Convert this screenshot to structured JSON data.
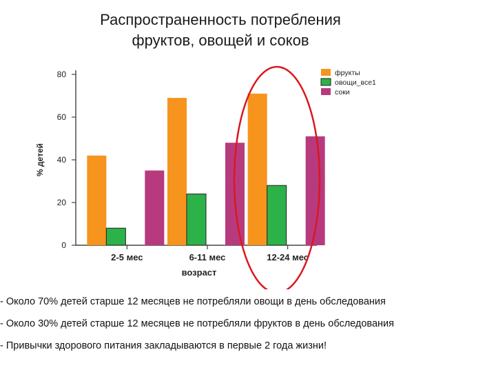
{
  "slide": {
    "title_line1": "Распространенность потребления",
    "title_line2": "фруктов, овощей и соков"
  },
  "chart_data": {
    "type": "bar",
    "title": "",
    "xlabel": "возраст",
    "ylabel": "% детей",
    "categories": [
      "2-5 мес",
      "6-11 мес",
      "12-24 мес"
    ],
    "series": [
      {
        "name": "фрукты",
        "values": [
          42,
          69,
          71
        ],
        "color": "#F7941D"
      },
      {
        "name": "овощи_все1",
        "values": [
          8,
          24,
          28
        ],
        "color": "#2DB24A"
      },
      {
        "name": "соки",
        "values": [
          35,
          48,
          51
        ],
        "color": "#B83A7E"
      }
    ],
    "ylim": [
      0,
      80
    ],
    "yticks": [
      0,
      20,
      40,
      60,
      80
    ],
    "grid": false,
    "legend": "top-right",
    "highlight": {
      "category": "12-24 мес",
      "color": "#D9181E",
      "shape": "ellipse"
    }
  },
  "notes": [
    "- Около 70% детей старше 12 месяцев  не потребляли овощи в день обследования",
    " - Около 30% детей старше 12 месяцев не потребляли фруктов в день обследования",
    "- Привычки здорового питания закладываются в первые 2 года жизни!"
  ]
}
